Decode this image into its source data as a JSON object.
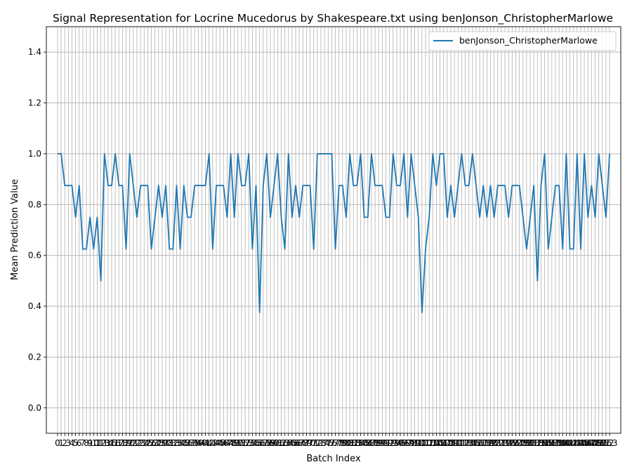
{
  "chart_data": {
    "type": "line",
    "title": "Signal Representation for Locrine Mucedorus by Shakespeare.txt using benJonson_ChristopherMarlowe",
    "xlabel": "Batch Index",
    "ylabel": "Mean Prediction Value",
    "ylim": [
      -0.1,
      1.5
    ],
    "xlim": [
      -3.1,
      156.1
    ],
    "yticks": [
      0.0,
      0.2,
      0.4,
      0.6,
      0.8,
      1.0,
      1.2,
      1.4
    ],
    "ytick_labels": [
      "0.0",
      "0.2",
      "0.4",
      "0.6",
      "0.8",
      "1.0",
      "1.2",
      "1.4"
    ],
    "grid": true,
    "legend_position": "top-right",
    "line_color": "#1f77b4",
    "series": [
      {
        "name": "benJonson_ChristopherMarlowe",
        "values": [
          1.0,
          1.0,
          0.875,
          0.875,
          0.875,
          0.75,
          0.875,
          0.625,
          0.625,
          0.75,
          0.625,
          0.75,
          0.5,
          1.0,
          0.875,
          0.875,
          1.0,
          0.875,
          0.875,
          0.625,
          1.0,
          0.875,
          0.75,
          0.875,
          0.875,
          0.875,
          0.625,
          0.75,
          0.875,
          0.75,
          0.875,
          0.625,
          0.625,
          0.875,
          0.625,
          0.875,
          0.75,
          0.75,
          0.875,
          0.875,
          0.875,
          0.875,
          1.0,
          0.625,
          0.875,
          0.875,
          0.875,
          0.75,
          1.0,
          0.75,
          1.0,
          0.875,
          0.875,
          1.0,
          0.625,
          0.875,
          0.375,
          0.875,
          1.0,
          0.75,
          0.875,
          1.0,
          0.75,
          0.625,
          1.0,
          0.75,
          0.875,
          0.75,
          0.875,
          0.875,
          0.875,
          0.625,
          1.0,
          1.0,
          1.0,
          1.0,
          1.0,
          0.625,
          0.875,
          0.875,
          0.75,
          1.0,
          0.875,
          0.875,
          1.0,
          0.75,
          0.75,
          1.0,
          0.875,
          0.875,
          0.875,
          0.75,
          0.75,
          1.0,
          0.875,
          0.875,
          1.0,
          0.75,
          1.0,
          0.875,
          0.75,
          0.375,
          0.625,
          0.75,
          1.0,
          0.875,
          1.0,
          1.0,
          0.75,
          0.875,
          0.75,
          0.875,
          1.0,
          0.875,
          0.875,
          1.0,
          0.875,
          0.75,
          0.875,
          0.75,
          0.875,
          0.75,
          0.875,
          0.875,
          0.875,
          0.75,
          0.875,
          0.875,
          0.875,
          0.75,
          0.625,
          0.75,
          0.875,
          0.5,
          0.875,
          1.0,
          0.625,
          0.75,
          0.875,
          0.875,
          0.625,
          1.0,
          0.625,
          0.625,
          1.0,
          0.625,
          1.0,
          0.75,
          0.875,
          0.75,
          1.0,
          0.875,
          0.75,
          1.0
        ]
      }
    ]
  }
}
